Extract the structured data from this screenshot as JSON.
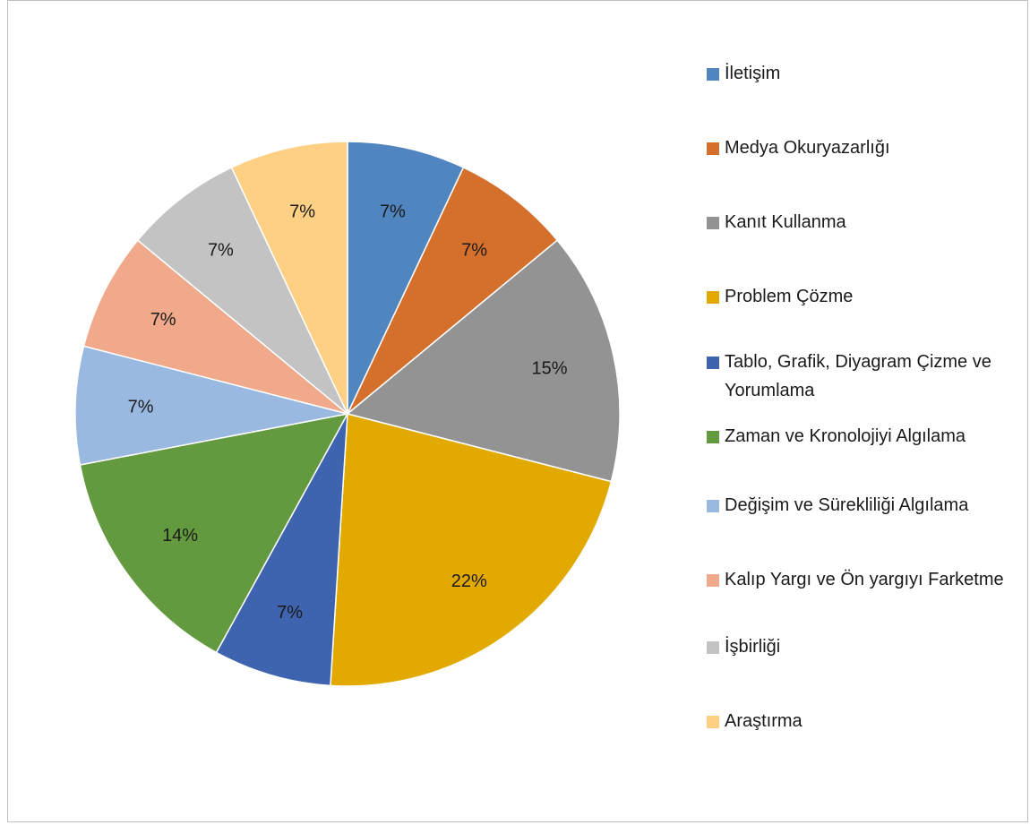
{
  "chart_data": {
    "type": "pie",
    "title": "",
    "legend_position": "right",
    "slices": [
      {
        "name": "İletişim",
        "value": 7,
        "label": "7%",
        "color": "#5085bf"
      },
      {
        "name": "Medya Okuryazarlığı",
        "value": 7,
        "label": "7%",
        "color": "#d5702c"
      },
      {
        "name": "Kanıt Kullanma",
        "value": 15,
        "label": "15%",
        "color": "#939393"
      },
      {
        "name": "Problem Çözme",
        "value": 22,
        "label": "22%",
        "color": "#e2aa00"
      },
      {
        "name": "Tablo, Grafik, Diyagram Çizme ve Yorumlama",
        "value": 7,
        "label": "7%",
        "color": "#3f64af"
      },
      {
        "name": "Zaman ve Kronolojiyi Algılama",
        "value": 14,
        "label": "14%",
        "color": "#649a3f"
      },
      {
        "name": "Değişim ve Sürekliliği Algılama",
        "value": 7,
        "label": "7%",
        "color": "#9ab9e1"
      },
      {
        "name": "Kalıp Yargı ve Ön yargıyı Farketme",
        "value": 7,
        "label": "7%",
        "color": "#f0a98a"
      },
      {
        "name": "İşbirliği",
        "value": 7,
        "label": "7%",
        "color": "#c3c3c3"
      },
      {
        "name": "Araştırma",
        "value": 7,
        "label": "7%",
        "color": "#fdd084"
      }
    ]
  }
}
